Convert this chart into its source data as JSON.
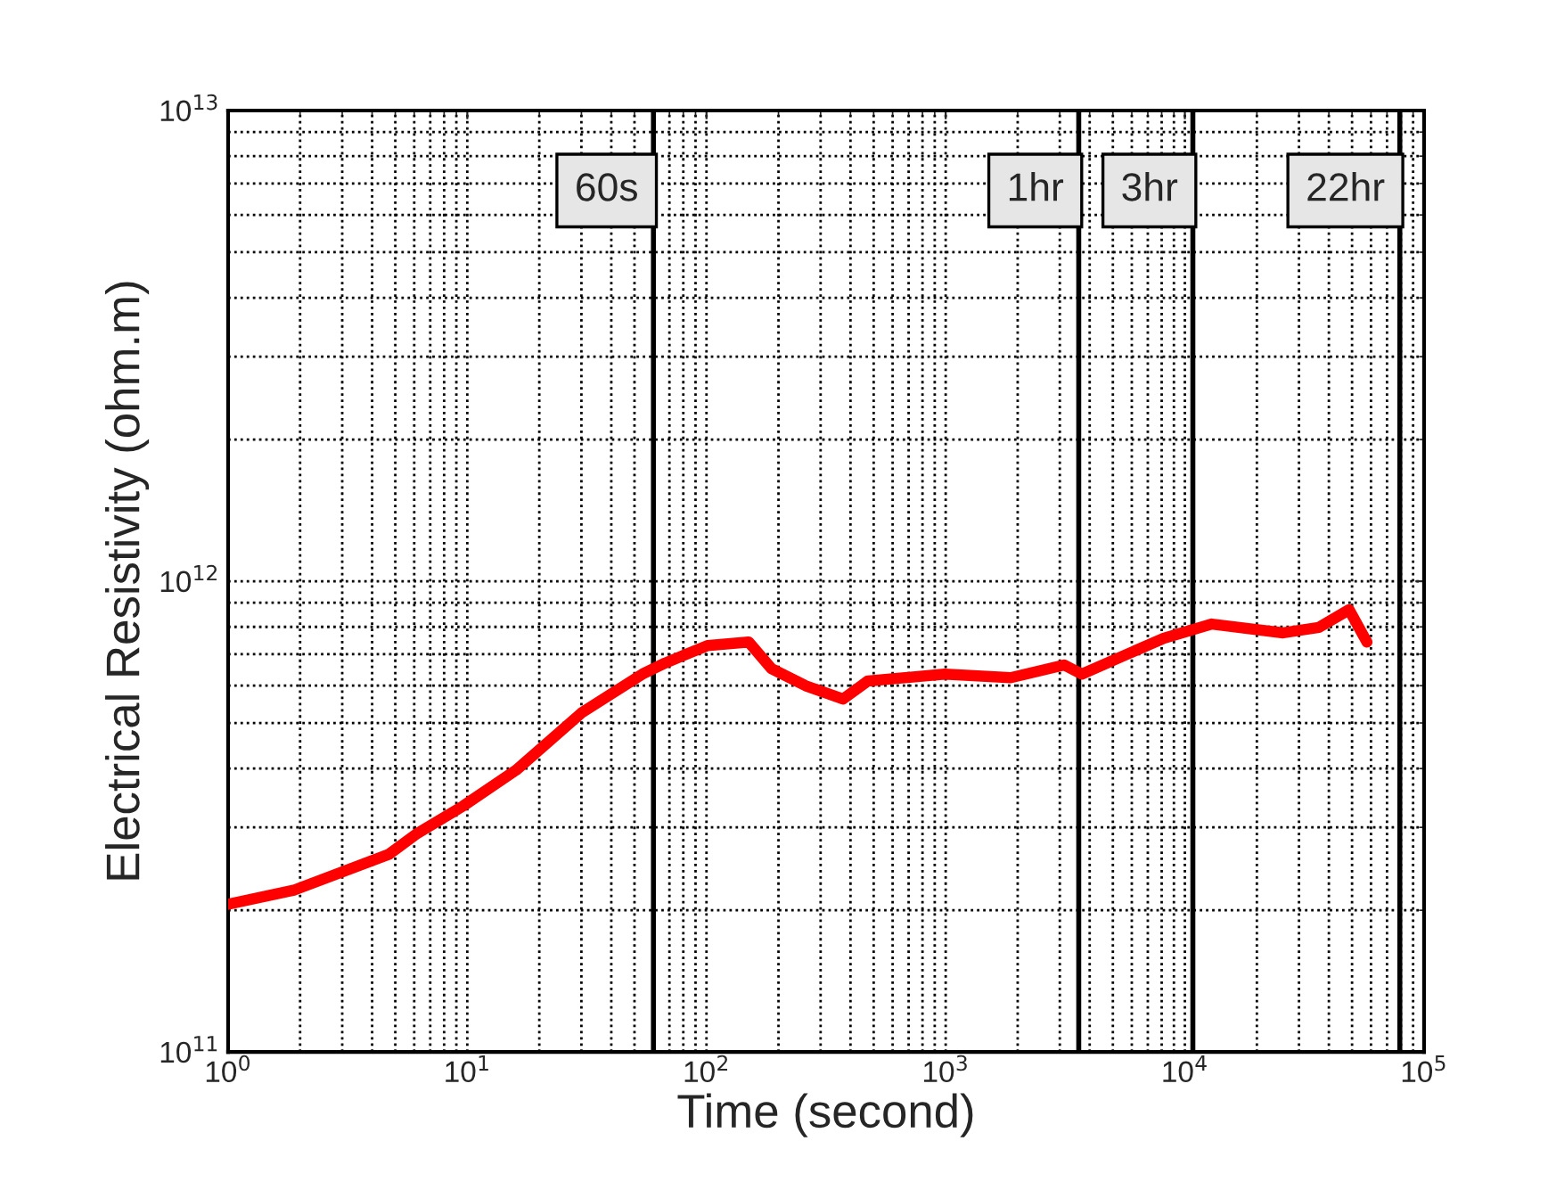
{
  "chart_data": {
    "type": "line",
    "xlabel": "Time (second)",
    "ylabel": "Electrical Resistivity (ohm.m)",
    "log": "xy",
    "grid": true,
    "marker": "none",
    "line_style": "solid",
    "xlim": [
      1,
      100000
    ],
    "xticks": [
      {
        "value": 1,
        "label": "10$^{0}$"
      },
      {
        "value": 10,
        "label": "10$^{1}$"
      },
      {
        "value": 100,
        "label": "10$^{2}$"
      },
      {
        "value": 1000,
        "label": "10$^{3}$"
      },
      {
        "value": 10000,
        "label": "10$^{4}$"
      },
      {
        "value": 100000,
        "label": "10$^{5}$"
      }
    ],
    "ylim": [
      100000000000,
      10000000000000
    ],
    "yticks": [
      {
        "value": 100000000000,
        "label": "10$^{11}$"
      },
      {
        "value": 1000000000000,
        "label": "10$^{12}$"
      },
      {
        "value": 10000000000000,
        "label": "10$^{13}$"
      }
    ],
    "series": [
      {
        "color": "#ff0000",
        "x": [
          1,
          1.9,
          4.7,
          6.1,
          9.6,
          16,
          30,
          54,
          67,
          101,
          150,
          187,
          263,
          372,
          473,
          990,
          1870,
          3130,
          3710,
          8170,
          12970,
          25780,
          36300,
          48600,
          57700
        ],
        "values": [
          206000000000,
          221000000000,
          263000000000,
          290000000000,
          333000000000,
          397000000000,
          525000000000,
          635000000000,
          670000000000,
          730000000000,
          743000000000,
          652000000000,
          598000000000,
          562000000000,
          614000000000,
          635000000000,
          624000000000,
          664000000000,
          635000000000,
          757000000000,
          811000000000,
          777000000000,
          798000000000,
          870000000000,
          743000000000
        ]
      }
    ],
    "ref_lines": [
      {
        "axis": "x",
        "value": 60,
        "label": "60s",
        "color": "#000000"
      },
      {
        "axis": "x",
        "value": 3600,
        "label": "1hr",
        "color": "#000000"
      },
      {
        "axis": "x",
        "value": 10800,
        "label": "3hr",
        "color": "#000000"
      },
      {
        "axis": "x",
        "value": 79200,
        "label": "22hr",
        "color": "#000000"
      }
    ]
  }
}
